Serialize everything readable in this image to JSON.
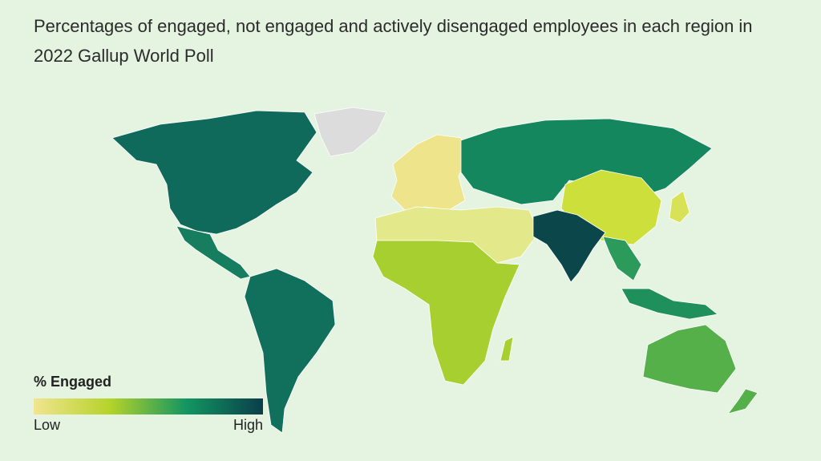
{
  "header": {
    "title": "Percentages of engaged, not engaged and actively disengaged employees in each region in 2022 Gallup World Poll"
  },
  "legend": {
    "title": "% Engaged",
    "low": "Low",
    "high": "High",
    "colors": [
      "#f1e48f",
      "#b5d32a",
      "#139562",
      "#0a3e4a"
    ]
  }
}
